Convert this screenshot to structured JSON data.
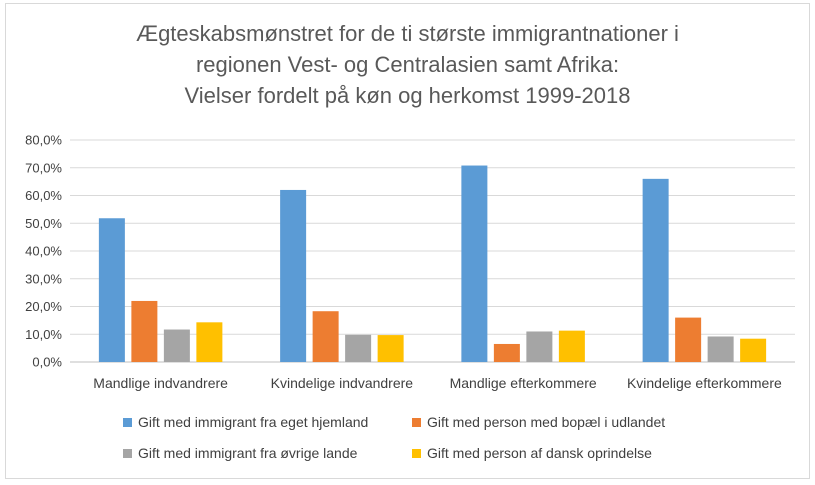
{
  "chart_data": {
    "type": "bar",
    "title_lines": [
      "Ægteskabsmønstret for de ti største immigrantnationer i",
      "regionen Vest- og Centralasien samt Afrika:",
      "Vielser fordelt på køn og herkomst 1999-2018"
    ],
    "categories": [
      "Mandlige indvandrere",
      "Kvindelige indvandrere",
      "Mandlige efterkommere",
      "Kvindelige efterkommere"
    ],
    "series": [
      {
        "name": "Gift med immigrant fra eget hjemland",
        "color": "#5b9bd5",
        "values": [
          51.8,
          62.0,
          70.8,
          66.0
        ]
      },
      {
        "name": "Gift med person med bopæl i udlandet",
        "color": "#ed7d31",
        "values": [
          22.0,
          18.3,
          6.5,
          16.0
        ]
      },
      {
        "name": "Gift med immigrant fra øvrige lande",
        "color": "#a5a5a5",
        "values": [
          11.7,
          9.8,
          11.0,
          9.2
        ]
      },
      {
        "name": "Gift med person af dansk oprindelse",
        "color": "#ffc000",
        "values": [
          14.3,
          9.7,
          11.3,
          8.4
        ]
      }
    ],
    "ylim": [
      0,
      80
    ],
    "yticks": [
      "0,0%",
      "10,0%",
      "20,0%",
      "30,0%",
      "40,0%",
      "50,0%",
      "60,0%",
      "70,0%",
      "80,0%"
    ],
    "ytick_values": [
      0,
      10,
      20,
      30,
      40,
      50,
      60,
      70,
      80
    ],
    "grid": true,
    "legend_position": "bottom"
  }
}
